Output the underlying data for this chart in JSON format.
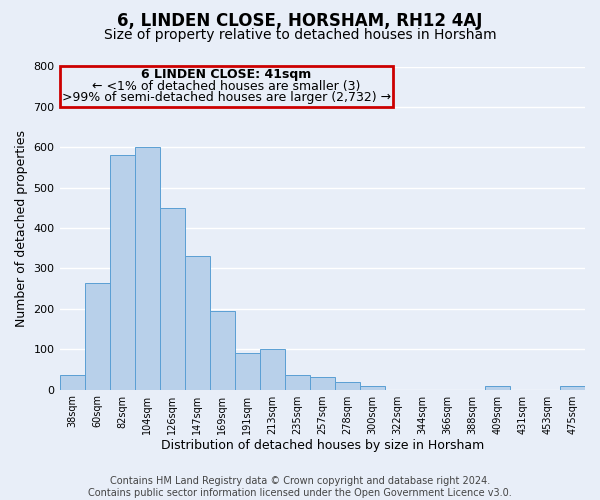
{
  "title": "6, LINDEN CLOSE, HORSHAM, RH12 4AJ",
  "subtitle": "Size of property relative to detached houses in Horsham",
  "xlabel": "Distribution of detached houses by size in Horsham",
  "ylabel": "Number of detached properties",
  "bar_labels": [
    "38sqm",
    "60sqm",
    "82sqm",
    "104sqm",
    "126sqm",
    "147sqm",
    "169sqm",
    "191sqm",
    "213sqm",
    "235sqm",
    "257sqm",
    "278sqm",
    "300sqm",
    "322sqm",
    "344sqm",
    "366sqm",
    "388sqm",
    "409sqm",
    "431sqm",
    "453sqm",
    "475sqm"
  ],
  "bar_heights": [
    37,
    265,
    580,
    600,
    450,
    330,
    195,
    90,
    100,
    37,
    30,
    18,
    10,
    0,
    0,
    0,
    0,
    8,
    0,
    0,
    8
  ],
  "bar_color": "#b8d0ea",
  "bar_edge_color": "#5a9fd4",
  "ylim": [
    0,
    800
  ],
  "yticks": [
    0,
    100,
    200,
    300,
    400,
    500,
    600,
    700,
    800
  ],
  "background_color": "#e8eef8",
  "grid_color": "#ffffff",
  "annotation_box_color": "#cc0000",
  "annotation_title": "6 LINDEN CLOSE: 41sqm",
  "annotation_line1": "← <1% of detached houses are smaller (3)",
  "annotation_line2": ">99% of semi-detached houses are larger (2,732) →",
  "footer_line1": "Contains HM Land Registry data © Crown copyright and database right 2024.",
  "footer_line2": "Contains public sector information licensed under the Open Government Licence v3.0.",
  "title_fontsize": 12,
  "subtitle_fontsize": 10,
  "xlabel_fontsize": 9,
  "ylabel_fontsize": 9,
  "annotation_fontsize": 9,
  "footer_fontsize": 7
}
